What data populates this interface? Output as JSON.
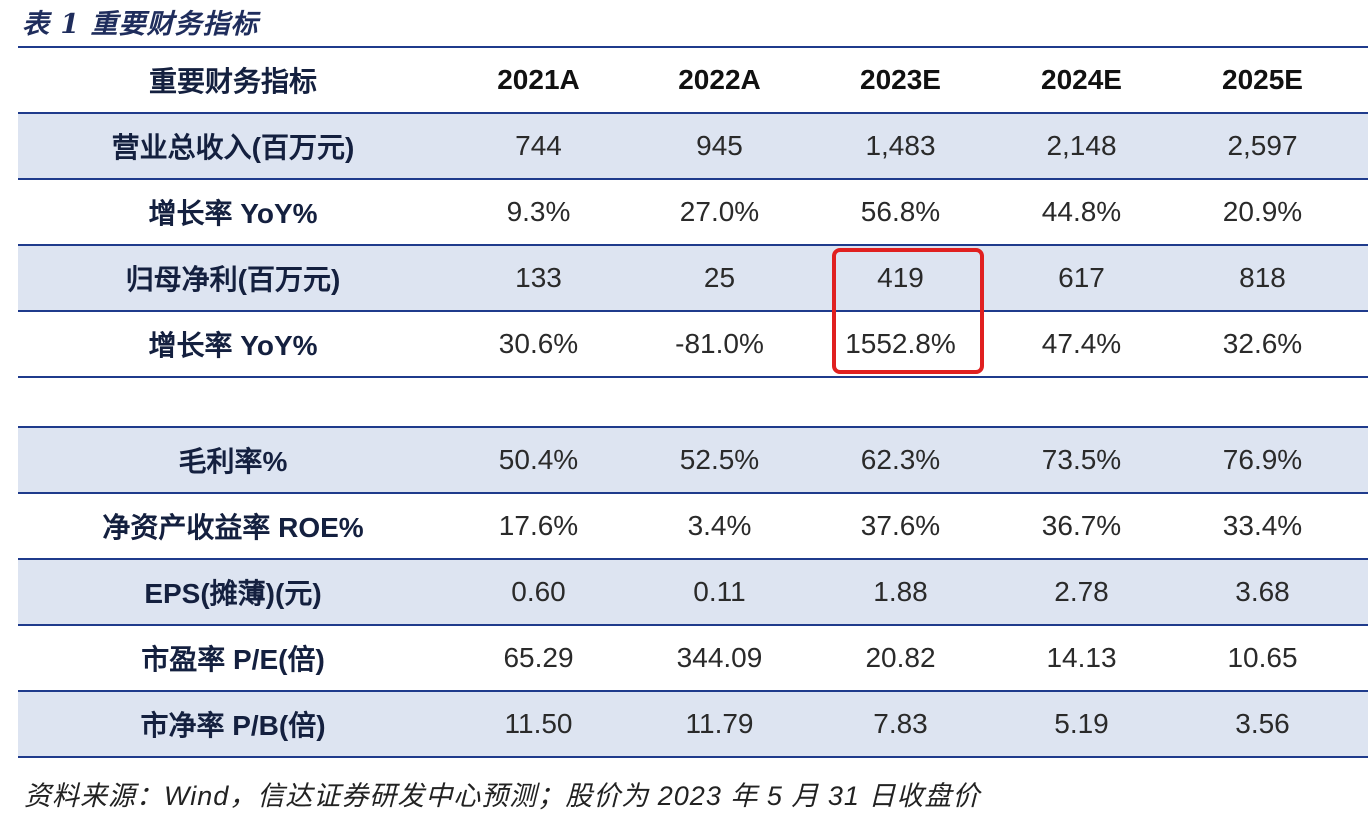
{
  "title": "表 1  重要财务指标",
  "header": {
    "label": "重要财务指标",
    "years": [
      "2021A",
      "2022A",
      "2023E",
      "2024E",
      "2025E"
    ]
  },
  "rows": [
    {
      "label": "营业总收入(百万元)",
      "values": [
        "744",
        "945",
        "1,483",
        "2,148",
        "2,597"
      ]
    },
    {
      "label": "增长率 YoY%",
      "values": [
        "9.3%",
        "27.0%",
        "56.8%",
        "44.8%",
        "20.9%"
      ]
    },
    {
      "label": "归母净利(百万元)",
      "values": [
        "133",
        "25",
        "419",
        "617",
        "818"
      ]
    },
    {
      "label": "增长率 YoY%",
      "values": [
        "30.6%",
        "-81.0%",
        "1552.8%",
        "47.4%",
        "32.6%"
      ]
    },
    {
      "label": "毛利率%",
      "values": [
        "50.4%",
        "52.5%",
        "62.3%",
        "73.5%",
        "76.9%"
      ]
    },
    {
      "label": "净资产收益率 ROE%",
      "values": [
        "17.6%",
        "3.4%",
        "37.6%",
        "36.7%",
        "33.4%"
      ]
    },
    {
      "label": "EPS(摊薄)(元)",
      "values": [
        "0.60",
        "0.11",
        "1.88",
        "2.78",
        "3.68"
      ]
    },
    {
      "label": "市盈率 P/E(倍)",
      "values": [
        "65.29",
        "344.09",
        "20.82",
        "14.13",
        "10.65"
      ]
    },
    {
      "label": "市净率 P/B(倍)",
      "values": [
        "11.50",
        "11.79",
        "7.83",
        "5.19",
        "3.56"
      ]
    }
  ],
  "footer": "资料来源：Wind，信达证券研发中心预测；股价为 2023 年 5 月 31 日收盘价",
  "colors": {
    "header_rule": "#1f3b8c",
    "row_shade": "#dde4f1",
    "highlight_box": "#e02020"
  }
}
